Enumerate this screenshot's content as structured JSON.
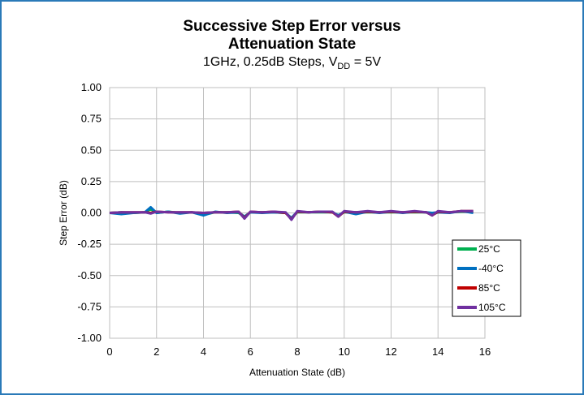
{
  "chart_data": {
    "type": "line",
    "title_line1": "Successive Step Error versus",
    "title_line2": "Attenuation State",
    "subtitle_prefix": "1GHz, 0.25dB Steps, V",
    "subtitle_sub": "DD",
    "subtitle_suffix": " = 5V",
    "xlabel": "Attenuation State (dB)",
    "ylabel": "Step Error (dB)",
    "xlim": [
      0,
      16
    ],
    "ylim": [
      -1.0,
      1.0
    ],
    "xticks": [
      0,
      2,
      4,
      6,
      8,
      10,
      12,
      14,
      16
    ],
    "xtick_labels": [
      "0",
      "2",
      "4",
      "6",
      "8",
      "10",
      "12",
      "14",
      "16"
    ],
    "yticks": [
      1.0,
      0.75,
      0.5,
      0.25,
      0.0,
      -0.25,
      -0.5,
      -0.75,
      -1.0
    ],
    "ytick_labels": [
      "1.00",
      "0.75",
      "0.50",
      "0.25",
      "0.00",
      "-0.25",
      "-0.50",
      "-0.75",
      "-1.00"
    ],
    "grid": true,
    "legend_position": "bottom-right",
    "series": [
      {
        "name": "25°C",
        "color": "#00b050",
        "x": [
          0,
          0.5,
          1,
          1.5,
          1.75,
          2,
          2.5,
          3,
          3.5,
          4,
          4.5,
          5,
          5.5,
          5.75,
          6,
          6.5,
          7,
          7.5,
          7.75,
          8,
          8.5,
          9,
          9.5,
          9.75,
          10,
          10.5,
          11,
          11.5,
          12,
          12.5,
          13,
          13.5,
          13.75,
          14,
          14.5,
          15,
          15.5
        ],
        "y": [
          0.0,
          0.005,
          0.0,
          0.005,
          0.03,
          0.0,
          0.01,
          0.0,
          0.005,
          -0.015,
          0.005,
          0.005,
          0.0,
          -0.03,
          0.005,
          0.005,
          0.005,
          0.0,
          -0.04,
          0.005,
          0.005,
          0.005,
          0.005,
          -0.02,
          0.005,
          0.005,
          0.005,
          0.005,
          0.005,
          0.005,
          0.005,
          0.005,
          -0.015,
          0.005,
          0.005,
          0.01,
          0.01
        ]
      },
      {
        "name": "-40°C",
        "color": "#0070c0",
        "x": [
          0,
          0.5,
          1,
          1.5,
          1.75,
          2,
          2.5,
          3,
          3.5,
          4,
          4.5,
          5,
          5.5,
          5.75,
          6,
          6.5,
          7,
          7.5,
          7.75,
          8,
          8.5,
          9,
          9.5,
          9.75,
          10,
          10.5,
          11,
          11.5,
          12,
          12.5,
          13,
          13.5,
          13.75,
          14,
          14.5,
          15,
          15.5
        ],
        "y": [
          0.0,
          -0.01,
          0.0,
          0.005,
          0.045,
          0.0,
          0.01,
          -0.005,
          0.005,
          -0.02,
          0.01,
          0.0,
          0.005,
          -0.03,
          0.005,
          0.0,
          0.005,
          0.0,
          -0.04,
          0.01,
          0.005,
          0.01,
          0.005,
          -0.02,
          0.01,
          -0.01,
          0.01,
          0.0,
          0.01,
          0.0,
          0.01,
          0.005,
          0.0,
          0.005,
          0.0,
          0.015,
          0.0
        ]
      },
      {
        "name": "85°C",
        "color": "#c00000",
        "x": [
          0,
          0.5,
          1,
          1.5,
          1.75,
          2,
          2.5,
          3,
          3.5,
          4,
          4.5,
          5,
          5.5,
          5.75,
          6,
          6.5,
          7,
          7.5,
          7.75,
          8,
          8.5,
          9,
          9.5,
          9.75,
          10,
          10.5,
          11,
          11.5,
          12,
          12.5,
          13,
          13.5,
          13.75,
          14,
          14.5,
          15,
          15.5
        ],
        "y": [
          0.0,
          0.005,
          0.005,
          0.005,
          0.0,
          0.01,
          0.005,
          0.005,
          0.005,
          0.0,
          0.005,
          0.005,
          0.01,
          -0.04,
          0.01,
          0.005,
          0.01,
          0.0,
          -0.05,
          0.01,
          0.005,
          0.01,
          0.005,
          -0.03,
          0.01,
          0.005,
          0.01,
          0.005,
          0.01,
          0.005,
          0.01,
          0.005,
          -0.02,
          0.01,
          0.005,
          0.015,
          0.015
        ]
      },
      {
        "name": "105°C",
        "color": "#7030a0",
        "x": [
          0,
          0.5,
          1,
          1.5,
          1.75,
          2,
          2.5,
          3,
          3.5,
          4,
          4.5,
          5,
          5.5,
          5.75,
          6,
          6.5,
          7,
          7.5,
          7.75,
          8,
          8.5,
          9,
          9.5,
          9.75,
          10,
          10.5,
          11,
          11.5,
          12,
          12.5,
          13,
          13.5,
          13.75,
          14,
          14.5,
          15,
          15.5
        ],
        "y": [
          0.0,
          0.005,
          0.005,
          0.005,
          -0.005,
          0.01,
          0.005,
          0.005,
          0.005,
          0.0,
          0.005,
          0.005,
          0.01,
          -0.045,
          0.01,
          0.005,
          0.01,
          0.005,
          -0.055,
          0.015,
          0.005,
          0.01,
          0.01,
          -0.03,
          0.015,
          0.005,
          0.015,
          0.005,
          0.015,
          0.005,
          0.015,
          0.005,
          -0.02,
          0.015,
          0.005,
          0.015,
          0.015
        ]
      }
    ]
  }
}
